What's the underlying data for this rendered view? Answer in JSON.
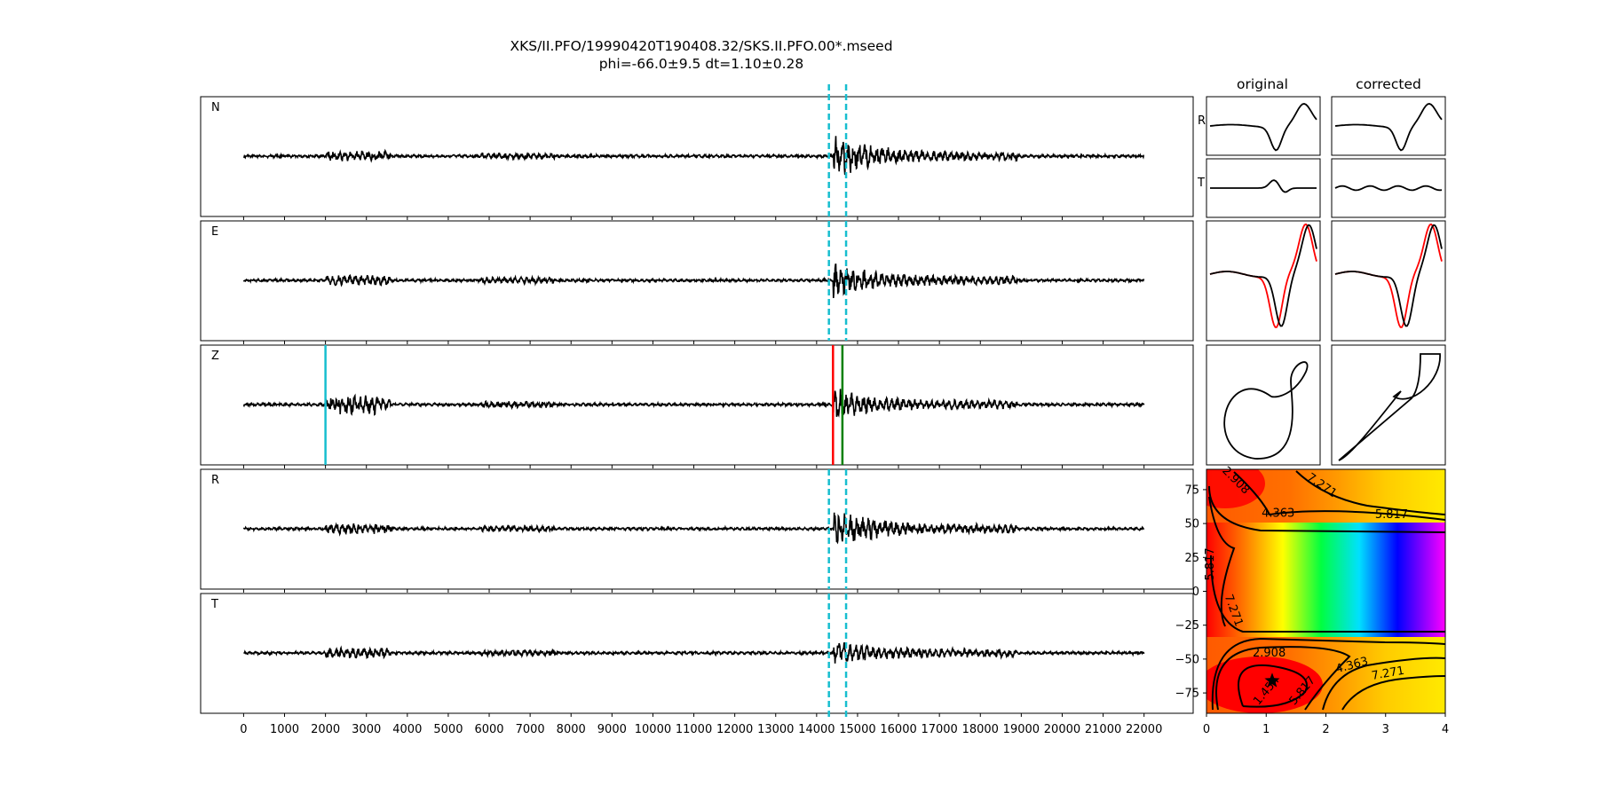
{
  "figure": {
    "title_line1": "XKS/II.PFO/19990420T190408.32/SKS.II.PFO.00*.mseed",
    "title_line2": "phi=-66.0±9.5 dt=1.10±0.28",
    "col_original": "original",
    "col_corrected": "corrected"
  },
  "colors": {
    "trace": "#000000",
    "window_marker": "#17becf",
    "pick_red": "#ff0000",
    "pick_green": "#008000",
    "overlay_red": "#ff0000"
  },
  "chart_data": [
    {
      "type": "line",
      "id": "waveforms",
      "channels": [
        "N",
        "E",
        "Z",
        "R",
        "T"
      ],
      "xlim": [
        -1050,
        23200
      ],
      "xticks": [
        0,
        1000,
        2000,
        3000,
        4000,
        5000,
        6000,
        7000,
        8000,
        9000,
        10000,
        11000,
        12000,
        13000,
        14000,
        15000,
        16000,
        17000,
        18000,
        19000,
        20000,
        21000,
        22000
      ],
      "xtick_labels": [
        "0",
        "1000",
        "2000",
        "3000",
        "4000",
        "5000",
        "6000",
        "7000",
        "8000",
        "9000",
        "10000",
        "11000",
        "12000",
        "13000",
        "14000",
        "15000",
        "16000",
        "17000",
        "18000",
        "19000",
        "20000",
        "21000",
        "22000"
      ],
      "trace_range": [
        0,
        22000
      ],
      "analysis_window": [
        14300,
        14720
      ],
      "z_markers": {
        "cyan": 2000,
        "red": 14400,
        "green": 14630
      }
    },
    {
      "type": "line",
      "id": "particle-motion-small",
      "rows": [
        "R",
        "T"
      ]
    },
    {
      "type": "heatmap",
      "id": "error-surface",
      "xlim": [
        0,
        4
      ],
      "ylim": [
        -90,
        90
      ],
      "xticks": [
        0,
        1,
        2,
        3,
        4
      ],
      "xtick_labels": [
        "0",
        "1",
        "2",
        "3",
        "4"
      ],
      "yticks": [
        75,
        50,
        25,
        0,
        -25,
        -50,
        -75
      ],
      "ytick_labels": [
        "75",
        "50",
        "25",
        "0",
        "−25",
        "−50",
        "−75"
      ],
      "contour_labels": [
        "1.454",
        "2.908",
        "4.363",
        "5.817",
        "7.271"
      ],
      "best_fit": {
        "dt": 1.1,
        "phi": -66.0
      }
    }
  ]
}
